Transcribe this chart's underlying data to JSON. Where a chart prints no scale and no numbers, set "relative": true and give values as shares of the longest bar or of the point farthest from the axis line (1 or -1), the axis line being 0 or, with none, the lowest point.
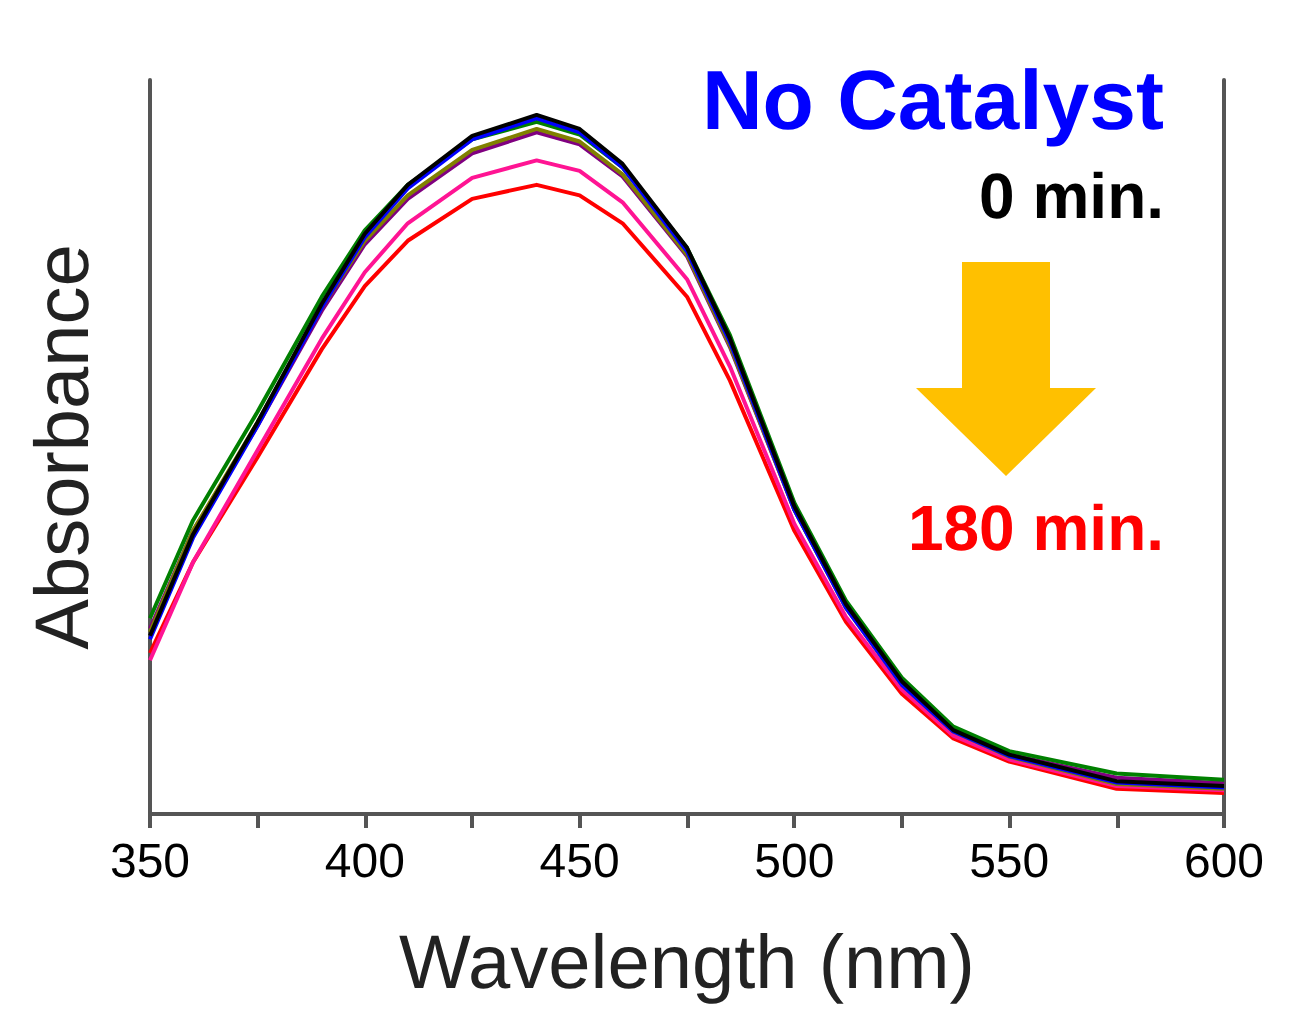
{
  "chart_data": {
    "type": "line",
    "title": "No Catalyst",
    "xlabel": "Wavelength (nm)",
    "ylabel": "Absorbance",
    "annotations": [
      "0 min.",
      "180 min."
    ],
    "relative": true,
    "grid": false,
    "marker": "none",
    "line_style": "solid",
    "tick_labels": "x",
    "xlim": [
      350,
      600
    ],
    "xticks": [
      350,
      {
        "value": 375,
        "label": null
      },
      400,
      {
        "value": 425,
        "label": null
      },
      450,
      {
        "value": 475,
        "label": null
      },
      500,
      {
        "value": 525,
        "label": null
      },
      550,
      {
        "value": 575,
        "label": null
      },
      600
    ],
    "x": [
      350,
      360,
      375,
      390,
      400,
      410,
      425,
      440,
      450,
      460,
      475,
      485,
      500,
      512,
      525,
      537,
      550,
      575,
      600
    ],
    "series": [
      {
        "color": "#000000",
        "values": [
          0.255,
          0.4,
          0.56,
          0.73,
          0.83,
          0.9,
          0.97,
          1.0,
          0.98,
          0.93,
          0.81,
          0.68,
          0.44,
          0.3,
          0.19,
          0.12,
          0.085,
          0.047,
          0.04
        ]
      },
      {
        "color": "#0000ff",
        "values": [
          0.25,
          0.395,
          0.555,
          0.725,
          0.825,
          0.895,
          0.965,
          0.995,
          0.975,
          0.925,
          0.805,
          0.675,
          0.435,
          0.295,
          0.185,
          0.118,
          0.083,
          0.045,
          0.038
        ]
      },
      {
        "color": "#008000",
        "values": [
          0.28,
          0.42,
          0.575,
          0.74,
          0.835,
          0.9,
          0.965,
          0.99,
          0.972,
          0.925,
          0.81,
          0.685,
          0.445,
          0.305,
          0.195,
          0.125,
          0.09,
          0.058,
          0.049
        ]
      },
      {
        "color": "#808000",
        "values": [
          0.26,
          0.405,
          0.56,
          0.725,
          0.82,
          0.885,
          0.95,
          0.98,
          0.962,
          0.915,
          0.8,
          0.67,
          0.435,
          0.295,
          0.185,
          0.118,
          0.082,
          0.043,
          0.036
        ]
      },
      {
        "color": "#800080",
        "values": [
          0.265,
          0.405,
          0.555,
          0.72,
          0.815,
          0.88,
          0.945,
          0.975,
          0.958,
          0.912,
          0.798,
          0.668,
          0.435,
          0.297,
          0.188,
          0.12,
          0.085,
          0.052,
          0.044
        ]
      },
      {
        "color": "#ff1493",
        "values": [
          0.22,
          0.36,
          0.52,
          0.68,
          0.775,
          0.845,
          0.91,
          0.935,
          0.92,
          0.875,
          0.765,
          0.64,
          0.415,
          0.282,
          0.178,
          0.112,
          0.078,
          0.04,
          0.034
        ]
      },
      {
        "color": "#ff0000",
        "values": [
          0.23,
          0.36,
          0.51,
          0.665,
          0.755,
          0.82,
          0.88,
          0.9,
          0.885,
          0.845,
          0.74,
          0.62,
          0.405,
          0.275,
          0.172,
          0.108,
          0.075,
          0.036,
          0.03
        ]
      }
    ]
  }
}
